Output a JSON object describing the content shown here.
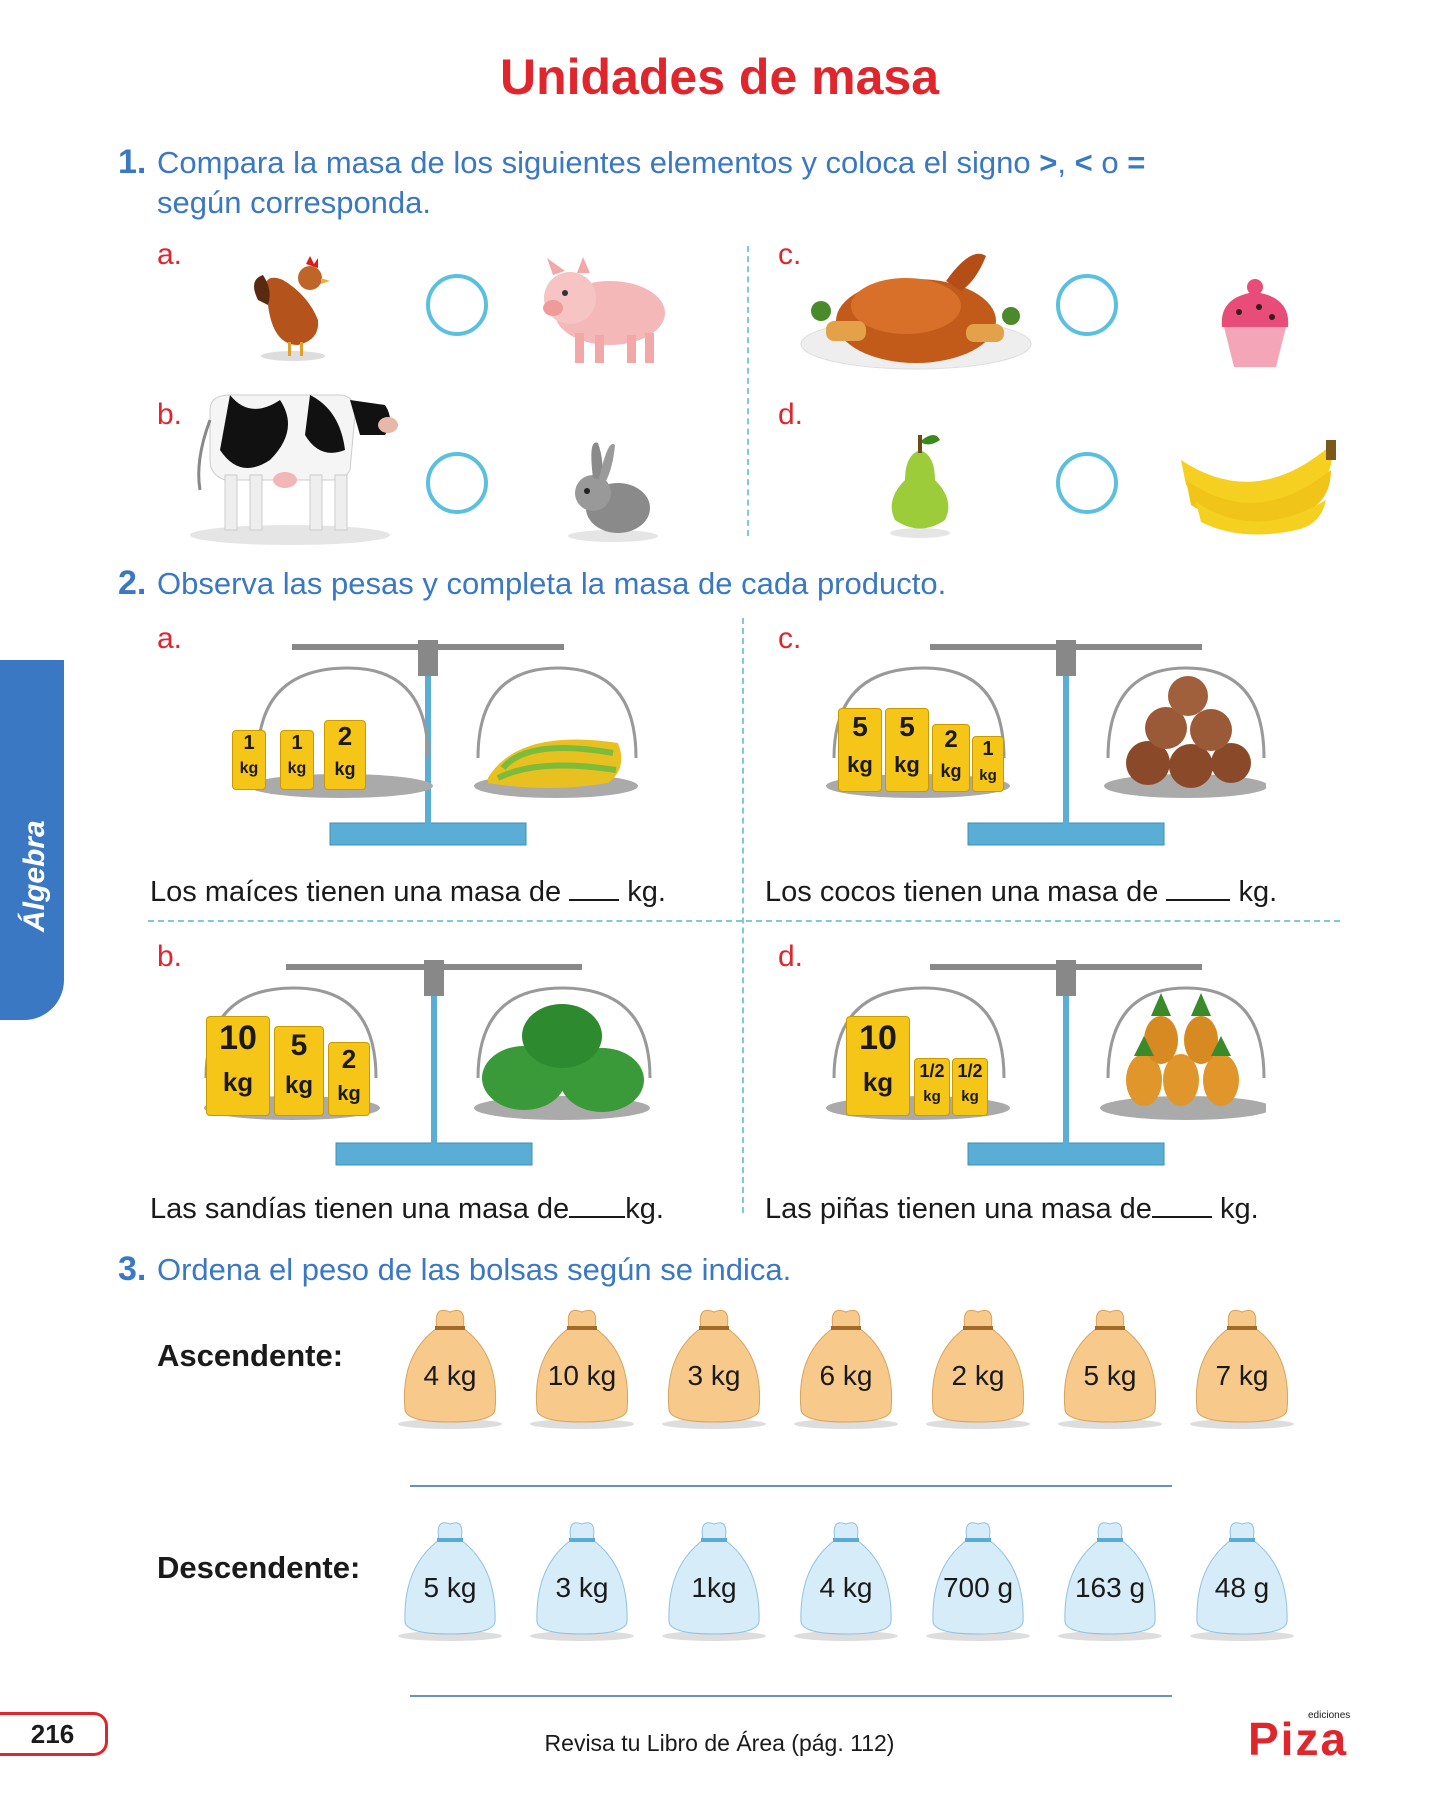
{
  "title": "Unidades de masa",
  "side_tab": "Álgebra",
  "q1": {
    "number": "1.",
    "text_line1": "Compara la masa de los siguientes elementos y coloca el signo",
    "signs": [
      ">",
      "<",
      "="
    ],
    "sign_sep1": ",",
    "sign_sep2": "o",
    "text_line2": "según corresponda.",
    "items": [
      {
        "letter": "a.",
        "left": "hen-icon",
        "right": "pig-icon"
      },
      {
        "letter": "b.",
        "left": "cow-icon",
        "right": "rabbit-icon"
      },
      {
        "letter": "c.",
        "left": "roast-chicken-icon",
        "right": "cupcake-icon"
      },
      {
        "letter": "d.",
        "left": "pear-icon",
        "right": "banana-icon"
      }
    ]
  },
  "q2": {
    "number": "2.",
    "text": "Observa las pesas y completa la masa de cada producto.",
    "scales": [
      {
        "letter": "a.",
        "weights": [
          {
            "n": "1",
            "u": "kg"
          },
          {
            "n": "1",
            "u": "kg"
          },
          {
            "n": "2",
            "u": "kg"
          }
        ],
        "product": "corn-icon",
        "sentence_pre": "Los maíces tienen una masa de",
        "sentence_post": "kg."
      },
      {
        "letter": "b.",
        "weights": [
          {
            "n": "10",
            "u": "kg"
          },
          {
            "n": "5",
            "u": "kg"
          },
          {
            "n": "2",
            "u": "kg"
          }
        ],
        "product": "watermelon-icon",
        "sentence_pre": "Las sandías tienen una masa de",
        "sentence_post": "kg."
      },
      {
        "letter": "c.",
        "weights": [
          {
            "n": "5",
            "u": "kg"
          },
          {
            "n": "5",
            "u": "kg"
          },
          {
            "n": "2",
            "u": "kg"
          },
          {
            "n": "1",
            "u": "kg"
          }
        ],
        "product": "coconut-icon",
        "sentence_pre": "Los cocos tienen una masa de",
        "sentence_post": "kg."
      },
      {
        "letter": "d.",
        "weights": [
          {
            "n": "10",
            "u": "kg"
          },
          {
            "n": "1/2",
            "u": "kg"
          },
          {
            "n": "1/2",
            "u": "kg"
          }
        ],
        "product": "pineapple-icon",
        "sentence_pre": "Las piñas tienen una masa de",
        "sentence_post": "kg."
      }
    ]
  },
  "q3": {
    "number": "3.",
    "text": "Ordena el peso de las bolsas según se indica.",
    "ascending_label": "Ascendente:",
    "ascending_bags": [
      "4 kg",
      "10 kg",
      "3 kg",
      "6 kg",
      "2 kg",
      "5 kg",
      "7 kg"
    ],
    "descending_label": "Descendente:",
    "descending_bags": [
      "5 kg",
      "3 kg",
      "1kg",
      "4 kg",
      "700 g",
      "163 g",
      "48 g"
    ]
  },
  "footer": {
    "page_number": "216",
    "text": "Revisa tu Libro de Área (pág. 112)",
    "logo": "Piza",
    "logo_sub": "ediciones"
  },
  "colors": {
    "title_red": "#e0262d",
    "question_blue": "#3a78c4",
    "circle_cyan": "#5bc0e0",
    "weight_yellow": "#f5c518",
    "scale_base": "#5aaed6"
  }
}
